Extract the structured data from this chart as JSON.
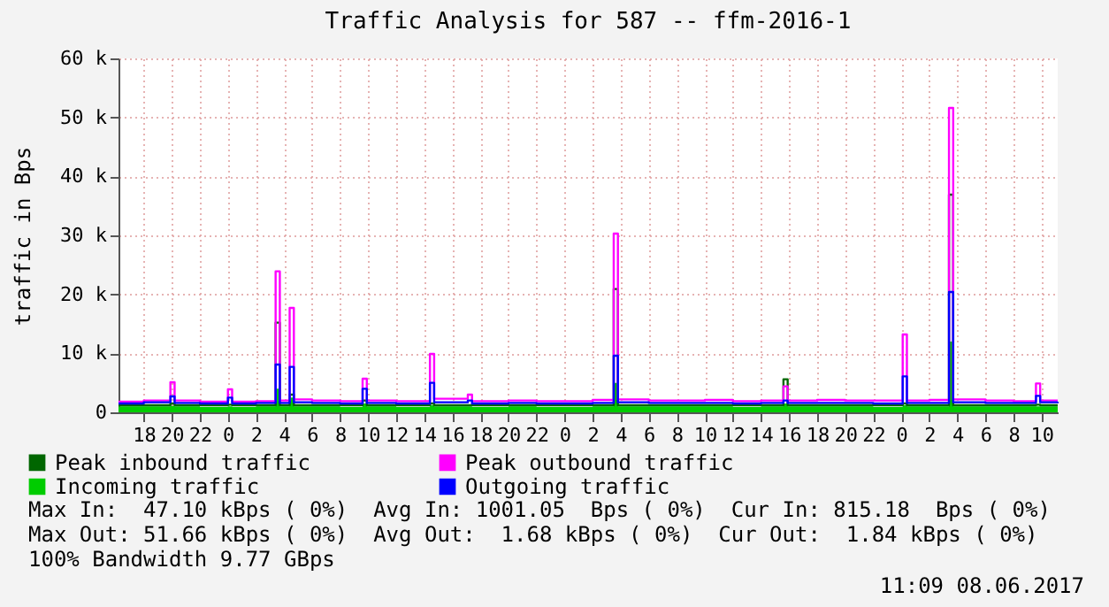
{
  "chart_data": {
    "type": "step",
    "title": "Traffic Analysis for 587 -- ffm-2016-1",
    "ylabel": "traffic in Bps",
    "x": [
      "2017-06-05T16:12",
      "2017-06-05T18:00",
      "2017-06-05T19:54",
      "2017-06-05T20:12",
      "2017-06-05T22:00",
      "2017-06-06T00:00",
      "2017-06-06T00:18",
      "2017-06-06T02:00",
      "2017-06-06T03:24",
      "2017-06-06T03:42",
      "2017-06-06T04:24",
      "2017-06-06T04:42",
      "2017-06-06T06:00",
      "2017-06-06T08:00",
      "2017-06-06T09:36",
      "2017-06-06T09:54",
      "2017-06-06T12:00",
      "2017-06-06T14:24",
      "2017-06-06T14:42",
      "2017-06-06T17:06",
      "2017-06-06T17:24",
      "2017-06-06T20:00",
      "2017-06-06T22:00",
      "2017-06-07T00:00",
      "2017-06-07T02:00",
      "2017-06-07T03:30",
      "2017-06-07T03:48",
      "2017-06-07T06:00",
      "2017-06-07T08:00",
      "2017-06-07T10:00",
      "2017-06-07T12:00",
      "2017-06-07T14:00",
      "2017-06-07T15:36",
      "2017-06-07T15:54",
      "2017-06-07T18:00",
      "2017-06-07T20:00",
      "2017-06-07T22:00",
      "2017-06-08T00:06",
      "2017-06-08T00:24",
      "2017-06-08T02:00",
      "2017-06-08T03:24",
      "2017-06-08T03:42",
      "2017-06-08T06:00",
      "2017-06-08T08:00",
      "2017-06-08T09:36",
      "2017-06-08T09:54",
      "2017-06-08T11:09"
    ],
    "series": [
      {
        "name": "Peak inbound traffic",
        "type": "step",
        "color": "#006600",
        "values": [
          1200,
          1200,
          1500,
          1200,
          1200,
          1300,
          1200,
          1200,
          15200,
          1200,
          3000,
          1200,
          1200,
          1200,
          2000,
          1200,
          1200,
          1500,
          1200,
          1200,
          1200,
          1200,
          1200,
          1200,
          1200,
          20900,
          1200,
          1200,
          1200,
          1200,
          1200,
          1200,
          5600,
          1200,
          1200,
          1200,
          1200,
          1500,
          1200,
          1200,
          36900,
          1200,
          1200,
          1200,
          1300,
          1200,
          1200
        ]
      },
      {
        "name": "Incoming traffic",
        "type": "area",
        "color": "#00cc00",
        "values": [
          1000,
          1000,
          1100,
          1000,
          900,
          1000,
          900,
          1000,
          4000,
          1000,
          2500,
          1000,
          1000,
          900,
          1500,
          1000,
          900,
          1200,
          1000,
          1000,
          900,
          1000,
          900,
          900,
          1000,
          5000,
          1000,
          1000,
          1000,
          1000,
          900,
          1000,
          1500,
          1000,
          1000,
          1000,
          900,
          1200,
          1000,
          1000,
          12000,
          1000,
          1000,
          1000,
          1000,
          1000,
          800
        ]
      },
      {
        "name": "Peak outbound traffic",
        "type": "step",
        "color": "#ff00ff",
        "values": [
          1800,
          2000,
          5100,
          2000,
          1800,
          3900,
          1800,
          1900,
          23900,
          2000,
          17700,
          2200,
          2000,
          1900,
          5700,
          2000,
          1900,
          9900,
          2300,
          3000,
          1900,
          2000,
          1900,
          1900,
          2100,
          30300,
          2200,
          2000,
          2000,
          2100,
          1900,
          2000,
          4400,
          2000,
          2100,
          2000,
          2000,
          13200,
          2000,
          2100,
          51600,
          2200,
          2000,
          1900,
          4900,
          2000,
          2000
        ]
      },
      {
        "name": "Outgoing traffic",
        "type": "step",
        "color": "#0000ff",
        "values": [
          1500,
          1700,
          2700,
          1600,
          1500,
          2500,
          1500,
          1600,
          8100,
          1600,
          7700,
          1700,
          1600,
          1500,
          4000,
          1600,
          1500,
          5000,
          1700,
          2000,
          1500,
          1600,
          1500,
          1500,
          1600,
          9600,
          1700,
          1600,
          1600,
          1600,
          1500,
          1600,
          2000,
          1600,
          1600,
          1600,
          1500,
          6100,
          1600,
          1600,
          20400,
          1700,
          1600,
          1600,
          2800,
          1700,
          1800
        ]
      }
    ],
    "xlim": [
      "2017-06-05T16:12",
      "2017-06-08T11:09"
    ],
    "xticks": [
      {
        "value": "2017-06-05T18:00",
        "label": "18"
      },
      {
        "value": "2017-06-05T20:00",
        "label": "20"
      },
      {
        "value": "2017-06-05T22:00",
        "label": "22"
      },
      {
        "value": "2017-06-06T00:00",
        "label": "0"
      },
      {
        "value": "2017-06-06T02:00",
        "label": "2"
      },
      {
        "value": "2017-06-06T04:00",
        "label": "4"
      },
      {
        "value": "2017-06-06T06:00",
        "label": "6"
      },
      {
        "value": "2017-06-06T08:00",
        "label": "8"
      },
      {
        "value": "2017-06-06T10:00",
        "label": "10"
      },
      {
        "value": "2017-06-06T12:00",
        "label": "12"
      },
      {
        "value": "2017-06-06T14:00",
        "label": "14"
      },
      {
        "value": "2017-06-06T16:00",
        "label": "16"
      },
      {
        "value": "2017-06-06T18:00",
        "label": "18"
      },
      {
        "value": "2017-06-06T20:00",
        "label": "20"
      },
      {
        "value": "2017-06-06T22:00",
        "label": "22"
      },
      {
        "value": "2017-06-07T00:00",
        "label": "0"
      },
      {
        "value": "2017-06-07T02:00",
        "label": "2"
      },
      {
        "value": "2017-06-07T04:00",
        "label": "4"
      },
      {
        "value": "2017-06-07T06:00",
        "label": "6"
      },
      {
        "value": "2017-06-07T08:00",
        "label": "8"
      },
      {
        "value": "2017-06-07T10:00",
        "label": "10"
      },
      {
        "value": "2017-06-07T12:00",
        "label": "12"
      },
      {
        "value": "2017-06-07T14:00",
        "label": "14"
      },
      {
        "value": "2017-06-07T16:00",
        "label": "16"
      },
      {
        "value": "2017-06-07T18:00",
        "label": "18"
      },
      {
        "value": "2017-06-07T20:00",
        "label": "20"
      },
      {
        "value": "2017-06-07T22:00",
        "label": "22"
      },
      {
        "value": "2017-06-08T00:00",
        "label": "0"
      },
      {
        "value": "2017-06-08T02:00",
        "label": "2"
      },
      {
        "value": "2017-06-08T04:00",
        "label": "4"
      },
      {
        "value": "2017-06-08T06:00",
        "label": "6"
      },
      {
        "value": "2017-06-08T08:00",
        "label": "8"
      },
      {
        "value": "2017-06-08T10:00",
        "label": "10"
      }
    ],
    "ylim": [
      0,
      60000
    ],
    "yticks": [
      0,
      {
        "value": 10000,
        "label": "10 k"
      },
      {
        "value": 20000,
        "label": "20 k"
      },
      {
        "value": 30000,
        "label": "30 k"
      },
      {
        "value": 40000,
        "label": "40 k"
      },
      {
        "value": 50000,
        "label": "50 k"
      },
      {
        "value": 60000,
        "label": "60 k"
      }
    ],
    "grid": true,
    "legend": "bottom",
    "annotations": [
      "Max In:  47.10 kBps ( 0%)  Avg In: 1001.05  Bps ( 0%)  Cur In: 815.18  Bps ( 0%)",
      "Max Out: 51.66 kBps ( 0%)  Avg Out:  1.68 kBps ( 0%)  Cur Out:  1.84 kBps ( 0%)",
      "100% Bandwidth 9.77 GBps",
      "11:09 08.06.2017"
    ]
  }
}
